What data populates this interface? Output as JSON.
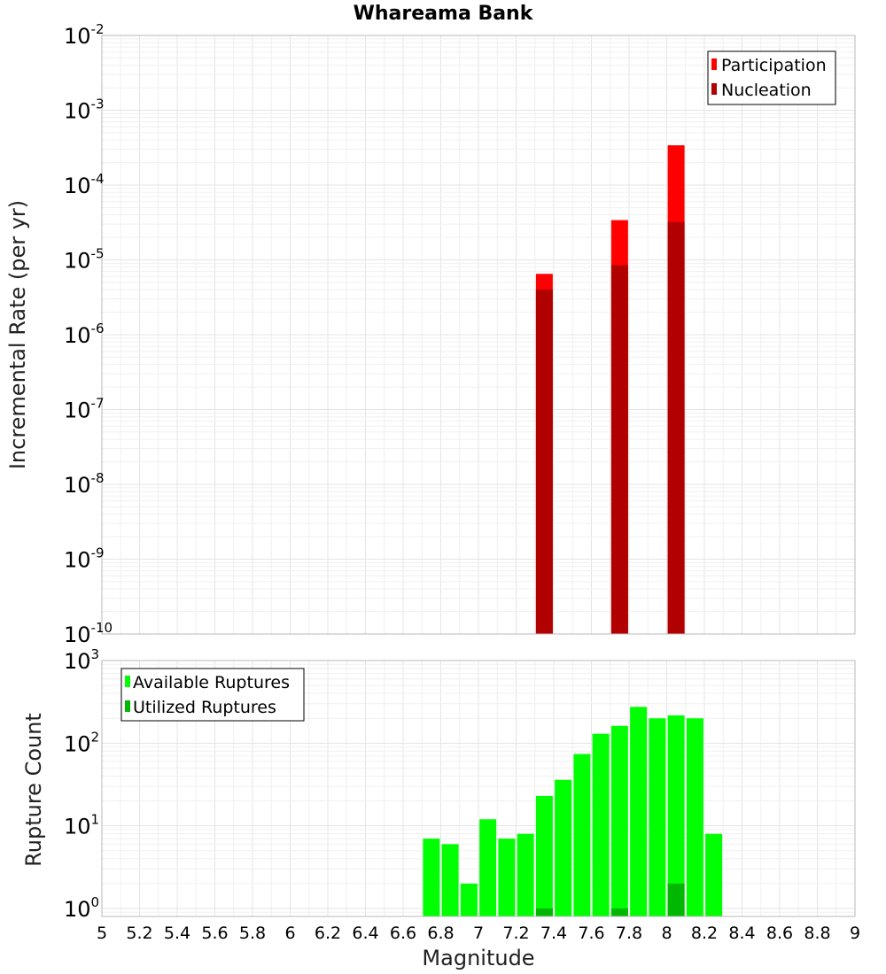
{
  "title": "Whareama Bank",
  "colors": {
    "participation": "#ff0000",
    "nucleation": "#b00000",
    "available": "#00ff00",
    "utilized": "#00b800"
  },
  "chart_data": [
    {
      "type": "bar",
      "id": "rate",
      "ylabel": "Incremental Rate (per yr)",
      "yscale": "log",
      "ylim": [
        1e-10,
        0.01
      ],
      "ytick_exponents": [
        -2,
        -3,
        -4,
        -5,
        -6,
        -7,
        -8,
        -9,
        -10
      ],
      "legend": {
        "position": "top-right",
        "entries": [
          "Participation",
          "Nucleation"
        ]
      },
      "series": [
        {
          "name": "Participation",
          "x": [
            7.35,
            7.75,
            8.05
          ],
          "values": [
            6.5e-06,
            3.4e-05,
            0.00034
          ]
        },
        {
          "name": "Nucleation",
          "x": [
            7.35,
            7.75,
            8.05
          ],
          "values": [
            4e-06,
            8.5e-06,
            3.2e-05
          ]
        }
      ]
    },
    {
      "type": "bar",
      "id": "count",
      "ylabel": "Rupture Count",
      "xlabel": "Magnitude",
      "yscale": "log",
      "ylim": [
        0.8,
        1000
      ],
      "ytick_exponents": [
        3,
        2,
        1,
        0
      ],
      "xlim": [
        5,
        9
      ],
      "xticks": [
        "5",
        "5.2",
        "5.4",
        "5.6",
        "5.8",
        "6",
        "6.2",
        "6.4",
        "6.6",
        "6.8",
        "7",
        "7.2",
        "7.4",
        "7.6",
        "7.8",
        "8",
        "8.2",
        "8.4",
        "8.6",
        "8.8",
        "9"
      ],
      "legend": {
        "position": "top-left",
        "entries": [
          "Available Ruptures",
          "Utilized Ruptures"
        ]
      },
      "series": [
        {
          "name": "Available Ruptures",
          "x": [
            6.75,
            6.85,
            6.95,
            7.05,
            7.15,
            7.25,
            7.35,
            7.45,
            7.55,
            7.65,
            7.75,
            7.85,
            7.95,
            8.05,
            8.15,
            8.25
          ],
          "values": [
            7,
            6,
            2,
            12,
            7,
            8,
            23,
            36,
            74,
            130,
            162,
            275,
            200,
            217,
            200,
            8
          ]
        },
        {
          "name": "Utilized Ruptures",
          "x": [
            7.35,
            7.75,
            8.05
          ],
          "values": [
            1,
            1,
            2
          ]
        }
      ]
    }
  ]
}
